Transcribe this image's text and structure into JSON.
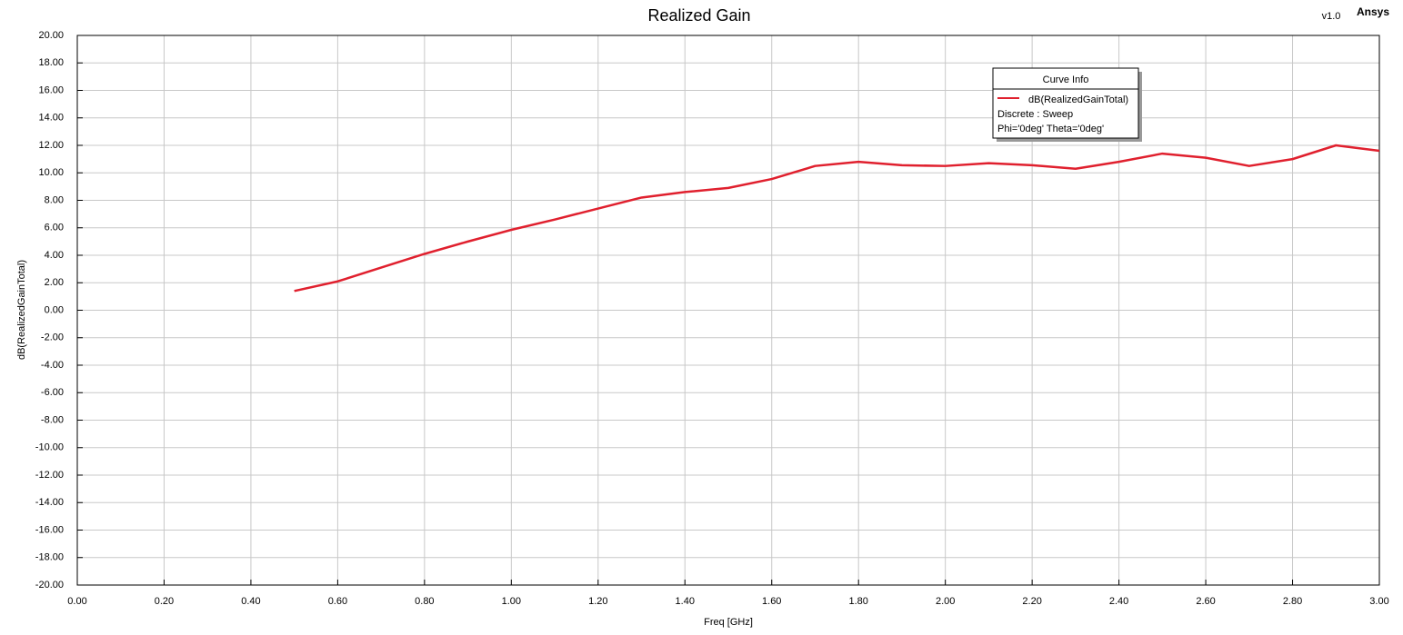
{
  "chart_data": {
    "type": "line",
    "title": "Realized Gain",
    "version": "v1.0",
    "brand": "Ansys",
    "xlabel": "Freq [GHz]",
    "ylabel": "dB(RealizedGainTotal)",
    "x": [
      0.5,
      0.6,
      0.7,
      0.8,
      0.9,
      1.0,
      1.1,
      1.2,
      1.3,
      1.4,
      1.5,
      1.6,
      1.7,
      1.8,
      1.9,
      2.0,
      2.1,
      2.2,
      2.3,
      2.4,
      2.5,
      2.6,
      2.7,
      2.8,
      2.9,
      3.0
    ],
    "series": [
      {
        "name": "dB(RealizedGainTotal)",
        "color": "#e0202e",
        "values": [
          1.4,
          2.1,
          3.1,
          4.1,
          5.0,
          5.85,
          6.6,
          7.4,
          8.2,
          8.6,
          8.9,
          9.55,
          10.5,
          10.8,
          10.55,
          10.5,
          10.7,
          10.55,
          10.3,
          10.8,
          11.4,
          11.1,
          10.5,
          11.0,
          12.0,
          11.6
        ]
      }
    ],
    "legend": {
      "title": "Curve Info",
      "lines": [
        "Discrete : Sweep",
        "Phi='0deg' Theta='0deg'"
      ]
    },
    "xlim": [
      0,
      3
    ],
    "ylim": [
      -20,
      20
    ],
    "xticks": [
      {
        "value": 0,
        "label": "0.00"
      },
      {
        "value": 0.2,
        "label": "0.20"
      },
      {
        "value": 0.4,
        "label": "0.40"
      },
      {
        "value": 0.6,
        "label": "0.60"
      },
      {
        "value": 0.8,
        "label": "0.80"
      },
      {
        "value": 1.0,
        "label": "1.00"
      },
      {
        "value": 1.2,
        "label": "1.20"
      },
      {
        "value": 1.4,
        "label": "1.40"
      },
      {
        "value": 1.6,
        "label": "1.60"
      },
      {
        "value": 1.8,
        "label": "1.80"
      },
      {
        "value": 2.0,
        "label": "2.00"
      },
      {
        "value": 2.2,
        "label": "2.20"
      },
      {
        "value": 2.4,
        "label": "2.40"
      },
      {
        "value": 2.6,
        "label": "2.60"
      },
      {
        "value": 2.8,
        "label": "2.80"
      },
      {
        "value": 3.0,
        "label": "3.00"
      }
    ],
    "yticks": [
      {
        "value": 20,
        "label": "20.00"
      },
      {
        "value": 18,
        "label": "18.00"
      },
      {
        "value": 16,
        "label": "16.00"
      },
      {
        "value": 14,
        "label": "14.00"
      },
      {
        "value": 12,
        "label": "12.00"
      },
      {
        "value": 10,
        "label": "10.00"
      },
      {
        "value": 8,
        "label": "8.00"
      },
      {
        "value": 6,
        "label": "6.00"
      },
      {
        "value": 4,
        "label": "4.00"
      },
      {
        "value": 2,
        "label": "2.00"
      },
      {
        "value": 0,
        "label": "0.00"
      },
      {
        "value": -2,
        "label": "-2.00"
      },
      {
        "value": -4,
        "label": "-4.00"
      },
      {
        "value": -6,
        "label": "-6.00"
      },
      {
        "value": -8,
        "label": "-8.00"
      },
      {
        "value": -10,
        "label": "-10.00"
      },
      {
        "value": -12,
        "label": "-12.00"
      },
      {
        "value": -14,
        "label": "-14.00"
      },
      {
        "value": -16,
        "label": "-16.00"
      },
      {
        "value": -18,
        "label": "-18.00"
      },
      {
        "value": -20,
        "label": "-20.00"
      }
    ],
    "grid": true
  }
}
